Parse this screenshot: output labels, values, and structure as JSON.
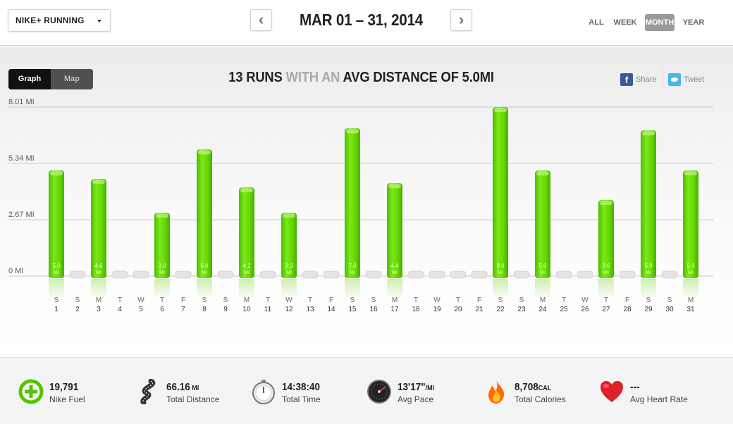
{
  "header": {
    "app_select": "NIKE+ RUNNING",
    "prev": "‹",
    "next": "›",
    "date_range": "MAR 01 – 31, 2014",
    "periods": [
      "ALL",
      "WEEK",
      "MONTH",
      "YEAR"
    ],
    "active_period": "MONTH"
  },
  "view_toggle": {
    "graph": "Graph",
    "map": "Map",
    "active": "Graph"
  },
  "summary": {
    "part1": "13 RUNS",
    "part2": " WITH AN ",
    "part3": "AVG DISTANCE OF 5.0MI"
  },
  "share": {
    "facebook": "Share",
    "twitter": "Tweet"
  },
  "chart_data": {
    "type": "bar",
    "y_ticks": [
      "8.01 MI",
      "5.34 MI",
      "2.67 MI",
      "0 MI"
    ],
    "ylim": [
      0,
      8.01
    ],
    "days": [
      {
        "dow": "S",
        "day": "1",
        "value": 5.0,
        "label": "5.0",
        "unit": "MI"
      },
      {
        "dow": "S",
        "day": "2",
        "value": 0
      },
      {
        "dow": "M",
        "day": "3",
        "value": 4.6,
        "label": "4.6",
        "unit": "MI"
      },
      {
        "dow": "T",
        "day": "4",
        "value": 0
      },
      {
        "dow": "W",
        "day": "5",
        "value": 0
      },
      {
        "dow": "T",
        "day": "6",
        "value": 3.0,
        "label": "3.0",
        "unit": "MI"
      },
      {
        "dow": "F",
        "day": "7",
        "value": 0
      },
      {
        "dow": "S",
        "day": "8",
        "value": 6.0,
        "label": "6.0",
        "unit": "MI"
      },
      {
        "dow": "S",
        "day": "9",
        "value": 0
      },
      {
        "dow": "M",
        "day": "10",
        "value": 4.2,
        "label": "4.2",
        "unit": "MI"
      },
      {
        "dow": "T",
        "day": "11",
        "value": 0
      },
      {
        "dow": "W",
        "day": "12",
        "value": 3.0,
        "label": "3.0",
        "unit": "MI"
      },
      {
        "dow": "T",
        "day": "13",
        "value": 0
      },
      {
        "dow": "F",
        "day": "14",
        "value": 0
      },
      {
        "dow": "S",
        "day": "15",
        "value": 7.0,
        "label": "7.0",
        "unit": "MI"
      },
      {
        "dow": "S",
        "day": "16",
        "value": 0
      },
      {
        "dow": "M",
        "day": "17",
        "value": 4.4,
        "label": "4.4",
        "unit": "MI"
      },
      {
        "dow": "T",
        "day": "18",
        "value": 0
      },
      {
        "dow": "W",
        "day": "19",
        "value": 0
      },
      {
        "dow": "T",
        "day": "20",
        "value": 0
      },
      {
        "dow": "F",
        "day": "21",
        "value": 0
      },
      {
        "dow": "S",
        "day": "22",
        "value": 8.0,
        "label": "8.0",
        "unit": "MI"
      },
      {
        "dow": "S",
        "day": "23",
        "value": 0
      },
      {
        "dow": "M",
        "day": "24",
        "value": 5.0,
        "label": "5.0",
        "unit": "MI"
      },
      {
        "dow": "T",
        "day": "25",
        "value": 0
      },
      {
        "dow": "W",
        "day": "26",
        "value": 0
      },
      {
        "dow": "T",
        "day": "27",
        "value": 3.6,
        "label": "3.6",
        "unit": "MI"
      },
      {
        "dow": "F",
        "day": "28",
        "value": 0
      },
      {
        "dow": "S",
        "day": "29",
        "value": 6.9,
        "label": "6.9",
        "unit": "MI"
      },
      {
        "dow": "S",
        "day": "30",
        "value": 0
      },
      {
        "dow": "M",
        "day": "31",
        "value": 5.0,
        "label": "5.0",
        "unit": "MI"
      }
    ],
    "bar_color": "#6ed400",
    "empty_color": "#e4e4e4"
  },
  "stats": {
    "fuel": {
      "value": "19,791",
      "label": "Nike Fuel",
      "icon": "nike-fuel-icon"
    },
    "distance": {
      "value": "66.16",
      "unit": " MI",
      "label": "Total Distance",
      "icon": "road-icon"
    },
    "time": {
      "value": "14:38:40",
      "label": "Total Time",
      "icon": "stopwatch-icon"
    },
    "pace": {
      "value": "13'17\"",
      "unit": "/MI",
      "label": "Avg Pace",
      "icon": "speedometer-icon"
    },
    "calories": {
      "value": "8,708",
      "unit": "CAL",
      "label": "Total Calories",
      "icon": "flame-icon"
    },
    "heart": {
      "value": "---",
      "label": "Avg Heart Rate",
      "icon": "heart-icon"
    }
  }
}
